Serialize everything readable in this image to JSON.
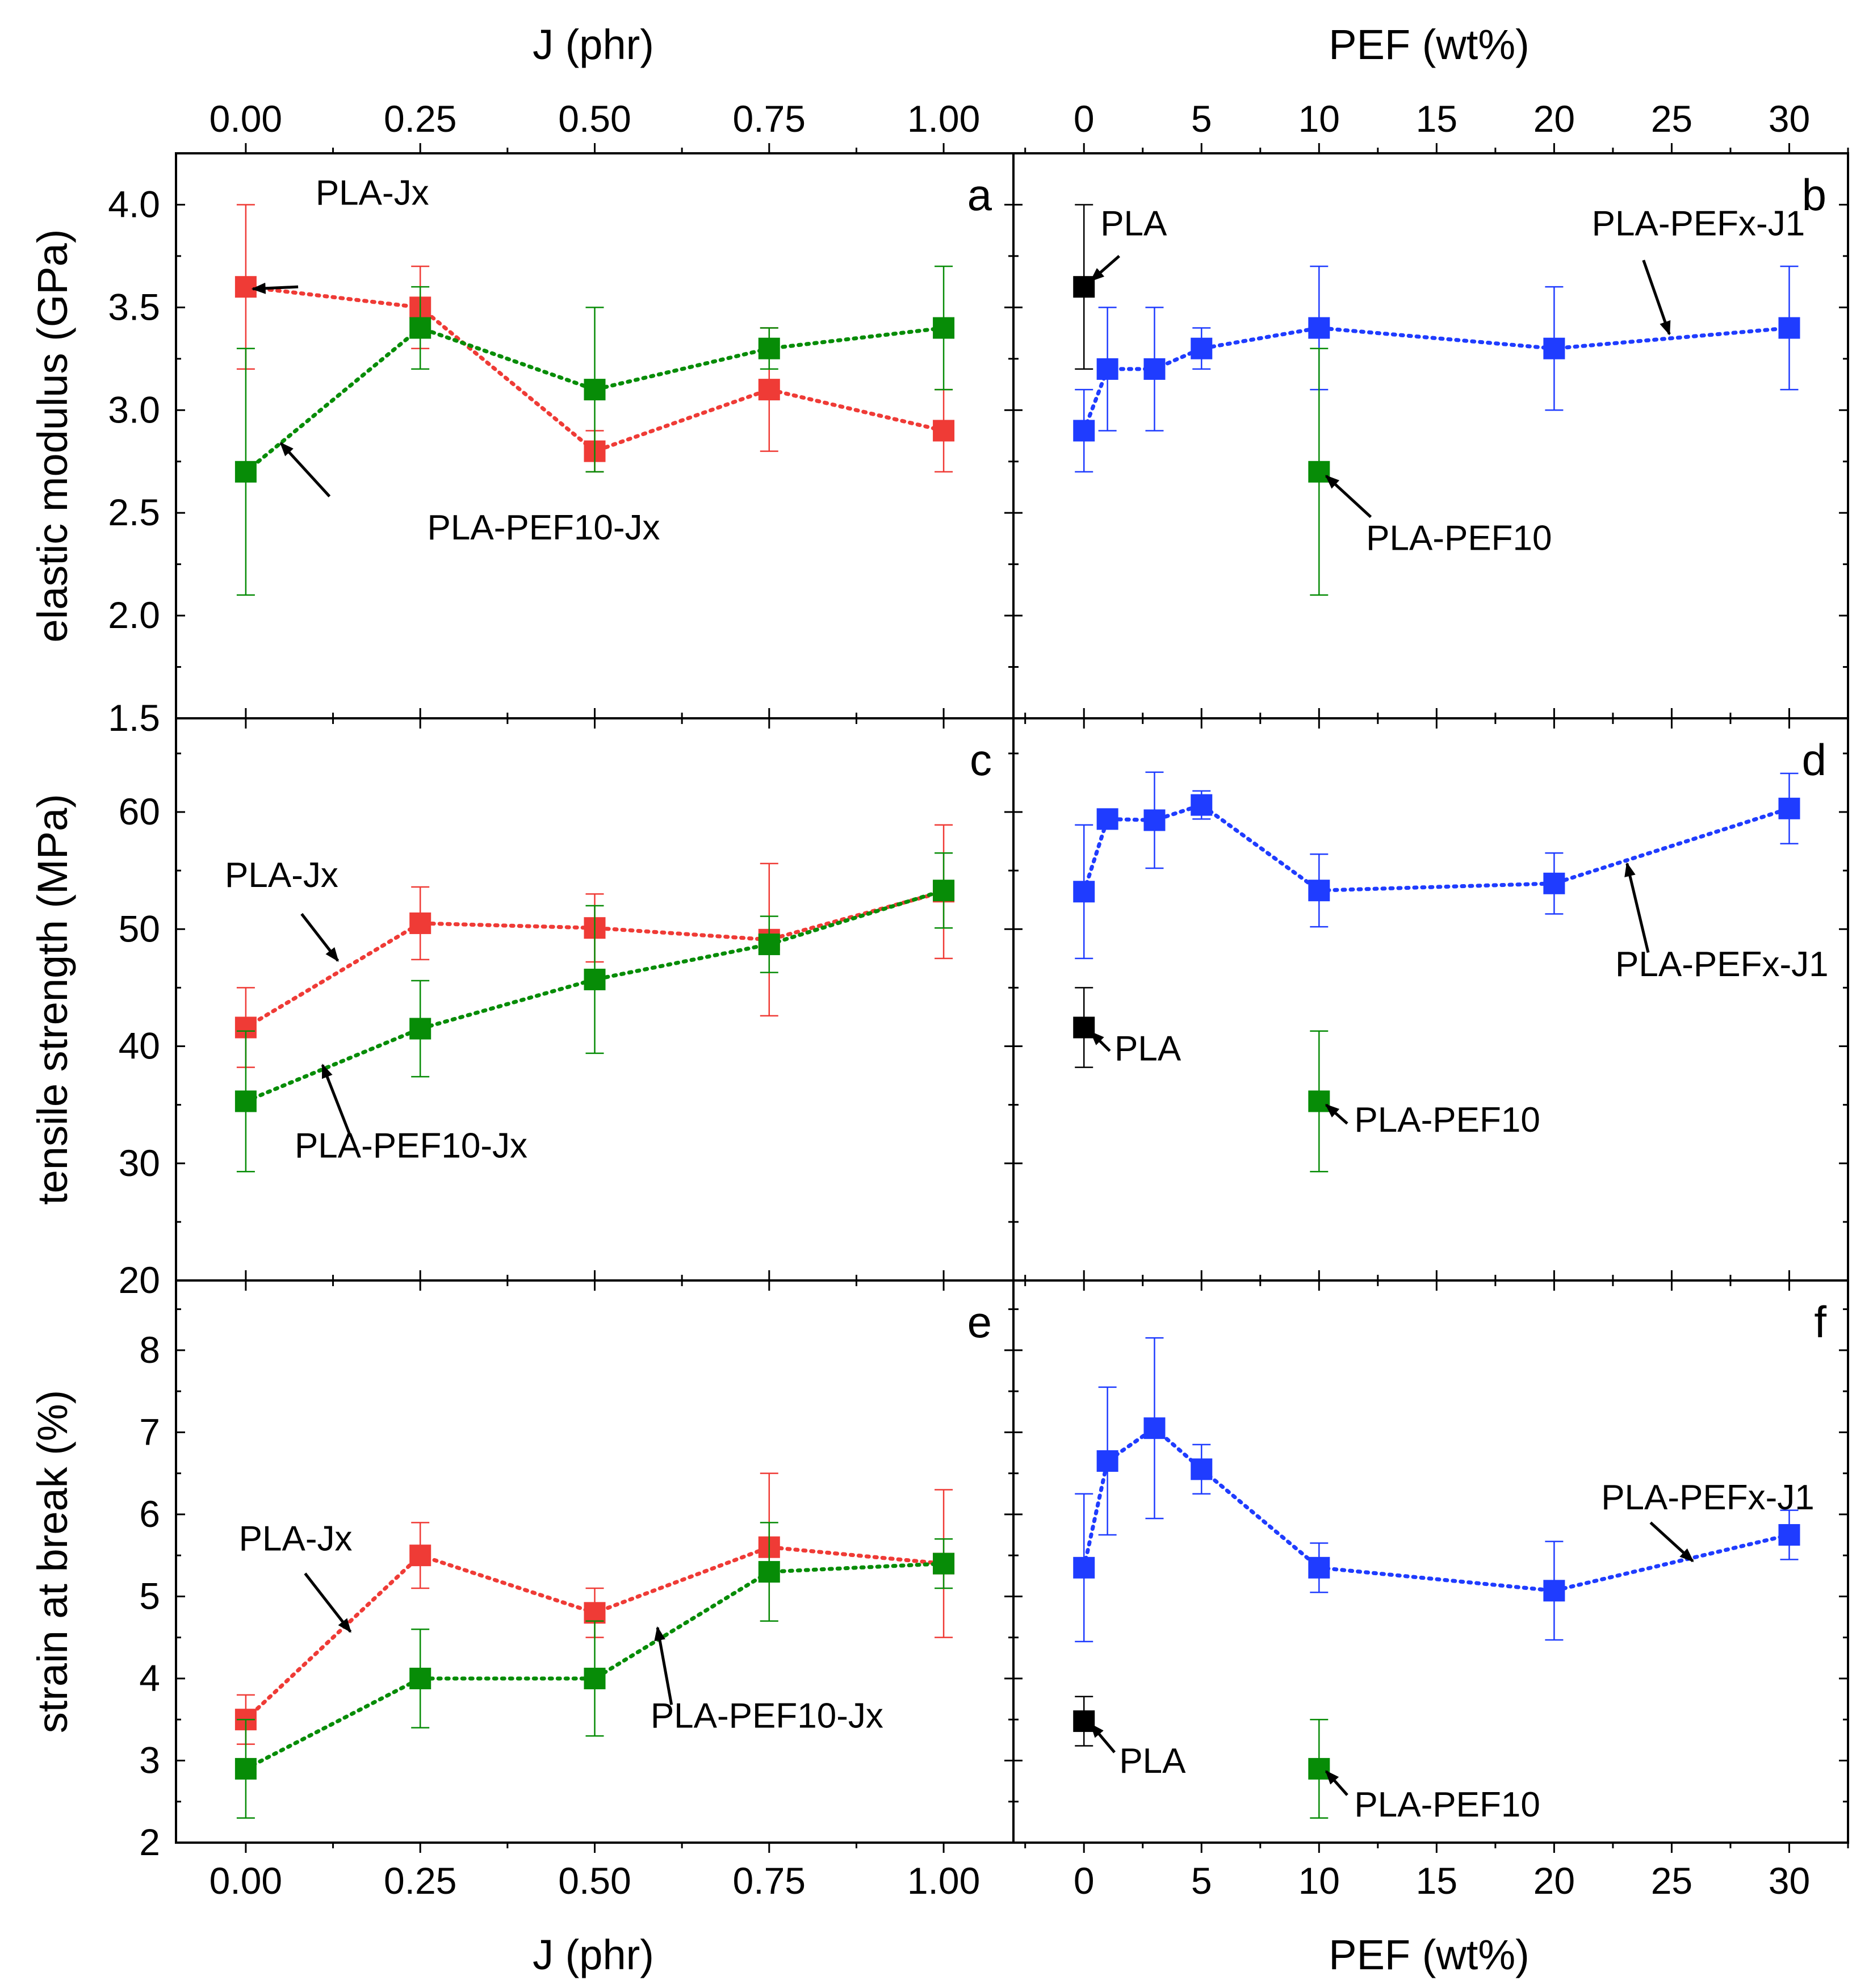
{
  "figure": {
    "top_axis_labels": {
      "left": "J (phr)",
      "right": "PEF (wt%)"
    },
    "bottom_axis_labels": {
      "left": "J (phr)",
      "right": "PEF (wt%)"
    },
    "colors": {
      "red": "#ef3b36",
      "green": "#078c07",
      "blue": "#1f3cff",
      "black": "#000000"
    }
  },
  "chart_data": [
    {
      "id": "a",
      "panel_label": "a",
      "type": "scatter",
      "xlabel": "J (phr)",
      "ylabel": "elastic modulus (GPa)",
      "xlim": [
        -0.1,
        1.1
      ],
      "ylim": [
        1.5,
        4.25
      ],
      "x_ticks": [
        0,
        0.25,
        0.5,
        0.75,
        1.0
      ],
      "x_tick_labels": [
        "0.00",
        "0.25",
        "0.50",
        "0.75",
        "1.00"
      ],
      "y_ticks": [
        1.5,
        2.0,
        2.5,
        3.0,
        3.5,
        4.0
      ],
      "y_tick_labels": [
        "1.5",
        "2.0",
        "2.5",
        "3.0",
        "3.5",
        "4.0"
      ],
      "series": [
        {
          "name": "PLA-Jx",
          "color": "#ef3b36",
          "line": true,
          "x": [
            0,
            0.25,
            0.5,
            0.75,
            1.0
          ],
          "y": [
            3.6,
            3.5,
            2.8,
            3.1,
            2.9
          ],
          "err": [
            0.4,
            0.2,
            0.1,
            0.3,
            0.2
          ]
        },
        {
          "name": "PLA-PEF10-Jx",
          "color": "#078c07",
          "line": true,
          "x": [
            0,
            0.25,
            0.5,
            0.75,
            1.0
          ],
          "y": [
            2.7,
            3.4,
            3.1,
            3.3,
            3.4
          ],
          "err": [
            0.6,
            0.2,
            0.4,
            0.1,
            0.3
          ]
        }
      ],
      "annotations": [
        {
          "text": "PLA-Jx",
          "tx": 0.1,
          "ty": 4.0,
          "ax": 0.075,
          "ay": 3.6,
          "hx": 0.01,
          "hy": 3.59
        },
        {
          "text": "PLA-PEF10-Jx",
          "tx": 0.26,
          "ty": 2.37,
          "ax": 0.12,
          "ay": 2.58,
          "hx": 0.05,
          "hy": 2.84
        }
      ]
    },
    {
      "id": "b",
      "panel_label": "b",
      "type": "scatter",
      "xlabel": "PEF (wt%)",
      "ylabel": "elastic modulus (GPa)",
      "xlim": [
        -3,
        32.5
      ],
      "ylim": [
        1.5,
        4.25
      ],
      "x_ticks": [
        0,
        5,
        10,
        15,
        20,
        25,
        30
      ],
      "x_tick_labels": [
        "0",
        "5",
        "10",
        "15",
        "20",
        "25",
        "30"
      ],
      "y_ticks": [
        1.5,
        2.0,
        2.5,
        3.0,
        3.5,
        4.0
      ],
      "series": [
        {
          "name": "PLA-PEFx-J1",
          "color": "#1f3cff",
          "line": true,
          "x": [
            0,
            1,
            3,
            5,
            10,
            20,
            30
          ],
          "y": [
            2.9,
            3.2,
            3.2,
            3.3,
            3.4,
            3.3,
            3.4
          ],
          "err": [
            0.2,
            0.3,
            0.3,
            0.1,
            0.3,
            0.3,
            0.3
          ]
        },
        {
          "name": "PLA",
          "color": "#000000",
          "line": false,
          "x": [
            0
          ],
          "y": [
            3.6
          ],
          "err": [
            0.4
          ]
        },
        {
          "name": "PLA-PEF10",
          "color": "#078c07",
          "line": false,
          "x": [
            10
          ],
          "y": [
            2.7
          ],
          "err": [
            0.6
          ]
        }
      ],
      "annotations": [
        {
          "text": "PLA",
          "tx": 0.7,
          "ty": 3.85,
          "ax": 1.5,
          "ay": 3.75,
          "hx": 0.3,
          "hy": 3.63
        },
        {
          "text": "PLA-PEFx-J1",
          "tx": 21.6,
          "ty": 3.85,
          "ax": 23.8,
          "ay": 3.73,
          "hx": 24.9,
          "hy": 3.37
        },
        {
          "text": "PLA-PEF10",
          "tx": 12.0,
          "ty": 2.32,
          "ax": 12.2,
          "ay": 2.48,
          "hx": 10.3,
          "hy": 2.68
        }
      ]
    },
    {
      "id": "c",
      "panel_label": "c",
      "type": "scatter",
      "xlabel": "J (phr)",
      "ylabel": "tensile strength (MPa)",
      "xlim": [
        -0.1,
        1.1
      ],
      "ylim": [
        20,
        68
      ],
      "x_ticks": [
        0,
        0.25,
        0.5,
        0.75,
        1.0
      ],
      "y_ticks": [
        20,
        30,
        40,
        50,
        60
      ],
      "y_tick_labels": [
        "20",
        "30",
        "40",
        "50",
        "60"
      ],
      "series": [
        {
          "name": "PLA-Jx",
          "color": "#ef3b36",
          "line": true,
          "x": [
            0,
            0.25,
            0.5,
            0.75,
            1.0
          ],
          "y": [
            41.6,
            50.5,
            50.1,
            49.1,
            53.2
          ],
          "err": [
            3.4,
            3.1,
            2.9,
            6.5,
            5.7
          ]
        },
        {
          "name": "PLA-PEF10-Jx",
          "color": "#078c07",
          "line": true,
          "x": [
            0,
            0.25,
            0.5,
            0.75,
            1.0
          ],
          "y": [
            35.3,
            41.5,
            45.7,
            48.7,
            53.3
          ],
          "err": [
            6.0,
            4.1,
            6.3,
            2.4,
            3.2
          ]
        }
      ],
      "annotations": [
        {
          "text": "PLA-Jx",
          "tx": -0.03,
          "ty": 53.6,
          "ax": 0.08,
          "ay": 51.3,
          "hx": 0.132,
          "hy": 47.3
        },
        {
          "text": "PLA-PEF10-Jx",
          "tx": 0.07,
          "ty": 30.5,
          "ax": 0.15,
          "ay": 32.3,
          "hx": 0.11,
          "hy": 38.4
        }
      ]
    },
    {
      "id": "d",
      "panel_label": "d",
      "type": "scatter",
      "xlabel": "PEF (wt%)",
      "ylabel": "tensile strength (MPa)",
      "xlim": [
        -3,
        32.5
      ],
      "ylim": [
        20,
        68
      ],
      "x_ticks": [
        0,
        5,
        10,
        15,
        20,
        25,
        30
      ],
      "y_ticks": [
        20,
        30,
        40,
        50,
        60
      ],
      "series": [
        {
          "name": "PLA-PEFx-J1",
          "color": "#1f3cff",
          "line": true,
          "x": [
            0,
            1,
            3,
            5,
            10,
            20,
            30
          ],
          "y": [
            53.2,
            59.4,
            59.3,
            60.6,
            53.3,
            53.9,
            60.3
          ],
          "err": [
            5.7,
            0.8,
            4.1,
            1.2,
            3.1,
            2.6,
            3.0
          ]
        },
        {
          "name": "PLA",
          "color": "#000000",
          "line": false,
          "x": [
            0
          ],
          "y": [
            41.6
          ],
          "err": [
            3.4
          ]
        },
        {
          "name": "PLA-PEF10",
          "color": "#078c07",
          "line": false,
          "x": [
            10
          ],
          "y": [
            35.3
          ],
          "err": [
            6.0
          ]
        }
      ],
      "annotations": [
        {
          "text": "PLA-PEFx-J1",
          "tx": 22.6,
          "ty": 46.0,
          "ax": 24.0,
          "ay": 48.0,
          "hx": 23.1,
          "hy": 55.6
        },
        {
          "text": "PLA",
          "tx": 1.3,
          "ty": 38.8,
          "ax": 1.1,
          "ay": 39.6,
          "hx": 0.3,
          "hy": 41.2
        },
        {
          "text": "PLA-PEF10",
          "tx": 11.5,
          "ty": 32.7,
          "ax": 11.2,
          "ay": 33.4,
          "hx": 10.3,
          "hy": 35.0
        }
      ]
    },
    {
      "id": "e",
      "panel_label": "e",
      "type": "scatter",
      "xlabel": "J (phr)",
      "ylabel": "strain at break (%)",
      "xlim": [
        -0.1,
        1.1
      ],
      "ylim": [
        2,
        8.85
      ],
      "x_ticks": [
        0,
        0.25,
        0.5,
        0.75,
        1.0
      ],
      "x_tick_labels": [
        "0.00",
        "0.25",
        "0.50",
        "0.75",
        "1.00"
      ],
      "y_ticks": [
        2,
        3,
        4,
        5,
        6,
        7,
        8
      ],
      "y_tick_labels": [
        "2",
        "3",
        "4",
        "5",
        "6",
        "7",
        "8"
      ],
      "series": [
        {
          "name": "PLA-Jx",
          "color": "#ef3b36",
          "line": true,
          "x": [
            0,
            0.25,
            0.5,
            0.75,
            1.0
          ],
          "y": [
            3.5,
            5.5,
            4.8,
            5.6,
            5.4
          ],
          "err": [
            0.3,
            0.4,
            0.3,
            0.9,
            0.9
          ]
        },
        {
          "name": "PLA-PEF10-Jx",
          "color": "#078c07",
          "line": true,
          "x": [
            0,
            0.25,
            0.5,
            0.75,
            1.0
          ],
          "y": [
            2.9,
            4.0,
            4.0,
            5.3,
            5.4
          ],
          "err": [
            0.6,
            0.6,
            0.7,
            0.6,
            0.3
          ]
        }
      ],
      "annotations": [
        {
          "text": "PLA-Jx",
          "tx": -0.01,
          "ty": 5.56,
          "ax": 0.085,
          "ay": 5.28,
          "hx": 0.15,
          "hy": 4.57
        },
        {
          "text": "PLA-PEF10-Jx",
          "tx": 0.58,
          "ty": 3.4,
          "ax": 0.61,
          "ay": 3.68,
          "hx": 0.59,
          "hy": 4.62
        }
      ]
    },
    {
      "id": "f",
      "panel_label": "f",
      "type": "scatter",
      "xlabel": "PEF (wt%)",
      "ylabel": "strain at break (%)",
      "xlim": [
        -3,
        32.5
      ],
      "ylim": [
        2,
        8.85
      ],
      "x_ticks": [
        0,
        5,
        10,
        15,
        20,
        25,
        30
      ],
      "x_tick_labels": [
        "0",
        "5",
        "10",
        "15",
        "20",
        "25",
        "30"
      ],
      "y_ticks": [
        2,
        3,
        4,
        5,
        6,
        7,
        8
      ],
      "series": [
        {
          "name": "PLA-PEFx-J1",
          "color": "#1f3cff",
          "line": true,
          "x": [
            0,
            1,
            3,
            5,
            10,
            20,
            30
          ],
          "y": [
            5.35,
            6.65,
            7.05,
            6.55,
            5.35,
            5.07,
            5.75
          ],
          "err": [
            0.9,
            0.9,
            1.1,
            0.3,
            0.3,
            0.6,
            0.3
          ]
        },
        {
          "name": "PLA",
          "color": "#000000",
          "line": false,
          "x": [
            0
          ],
          "y": [
            3.48
          ],
          "err": [
            0.3
          ]
        },
        {
          "name": "PLA-PEF10",
          "color": "#078c07",
          "line": false,
          "x": [
            10
          ],
          "y": [
            2.9
          ],
          "err": [
            0.6
          ]
        }
      ],
      "annotations": [
        {
          "text": "PLA-PEFx-J1",
          "tx": 22.0,
          "ty": 6.06,
          "ax": 24.1,
          "ay": 5.9,
          "hx": 25.9,
          "hy": 5.43
        },
        {
          "text": "PLA",
          "tx": 1.5,
          "ty": 2.85,
          "ax": 1.3,
          "ay": 3.1,
          "hx": 0.3,
          "hy": 3.44
        },
        {
          "text": "PLA-PEF10",
          "tx": 11.5,
          "ty": 2.32,
          "ax": 11.2,
          "ay": 2.58,
          "hx": 10.3,
          "hy": 2.87
        }
      ]
    }
  ]
}
